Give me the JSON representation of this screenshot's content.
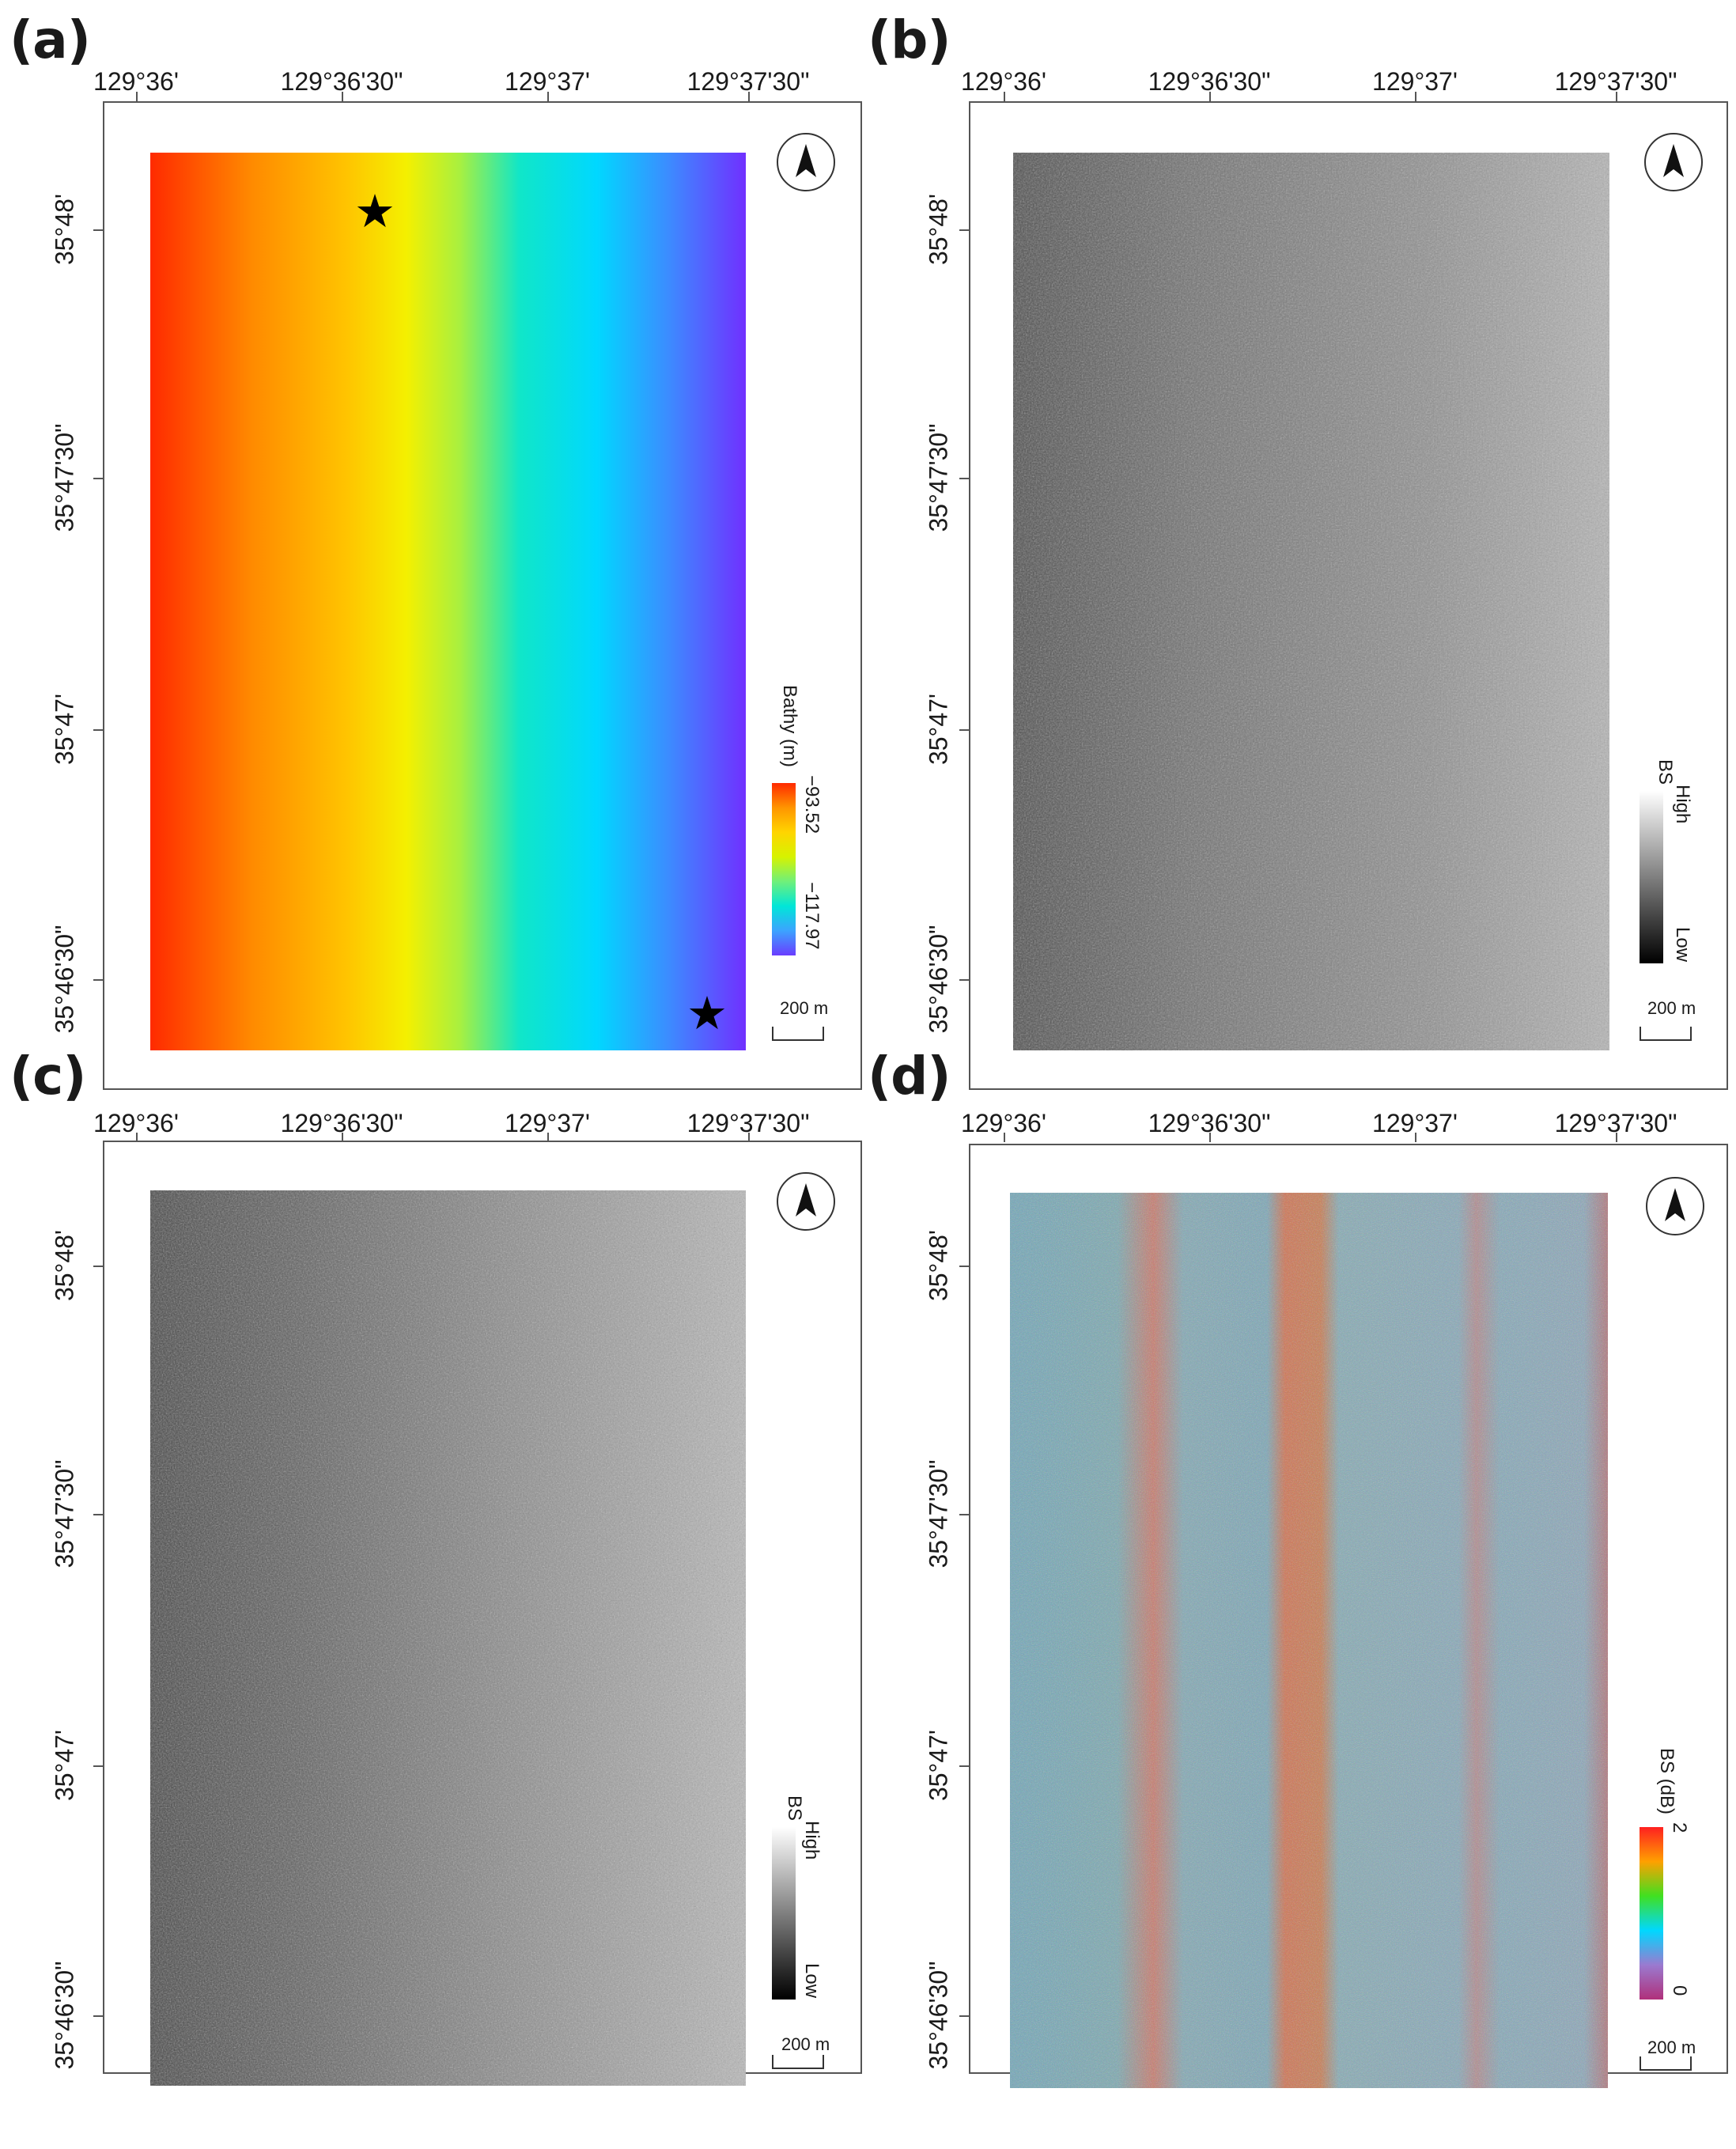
{
  "panels": {
    "a": {
      "label": "(a)",
      "lon_ticks": [
        "129°36'",
        "129°36'30\"",
        "129°37'",
        "129°37'30\""
      ],
      "lat_ticks": [
        "35°48'",
        "35°47'30\"",
        "35°47'",
        "35°46'30\""
      ],
      "legend": {
        "title": "Bathy (m)",
        "max_label": "−93.52",
        "min_label": "−117.97",
        "colors": [
          "#ff2a00",
          "#ff9500",
          "#ffd500",
          "#d6f300",
          "#6ff07a",
          "#00e6d8",
          "#3ca3ff",
          "#6a3cff"
        ]
      },
      "scale_label": "200 m",
      "markers": [
        "★",
        "★"
      ]
    },
    "b": {
      "label": "(b)",
      "lon_ticks": [
        "129°36'",
        "129°36'30\"",
        "129°37'",
        "129°37'30\""
      ],
      "lat_ticks": [
        "35°48'",
        "35°47'30\"",
        "35°47'",
        "35°46'30\""
      ],
      "legend": {
        "title": "BS",
        "high_label": "High",
        "low_label": "Low"
      },
      "scale_label": "200 m"
    },
    "c": {
      "label": "(c)",
      "lon_ticks": [
        "129°36'",
        "129°36'30\"",
        "129°37'",
        "129°37'30\""
      ],
      "lat_ticks": [
        "35°48'",
        "35°47'30\"",
        "35°47'",
        "35°46'30\""
      ],
      "legend": {
        "title": "BS",
        "high_label": "High",
        "low_label": "Low"
      },
      "scale_label": "200 m"
    },
    "d": {
      "label": "(d)",
      "lon_ticks": [
        "129°36'",
        "129°36'30\"",
        "129°37'",
        "129°37'30\""
      ],
      "lat_ticks": [
        "35°48'",
        "35°47'30\"",
        "35°47'",
        "35°46'30\""
      ],
      "legend": {
        "title": "BS (dB)",
        "max_label": "2",
        "min_label": "0",
        "colors": [
          "#ff2020",
          "#ffa000",
          "#40e020",
          "#00d8ff",
          "#9a7ad0",
          "#b0307a"
        ]
      },
      "scale_label": "200 m"
    }
  }
}
